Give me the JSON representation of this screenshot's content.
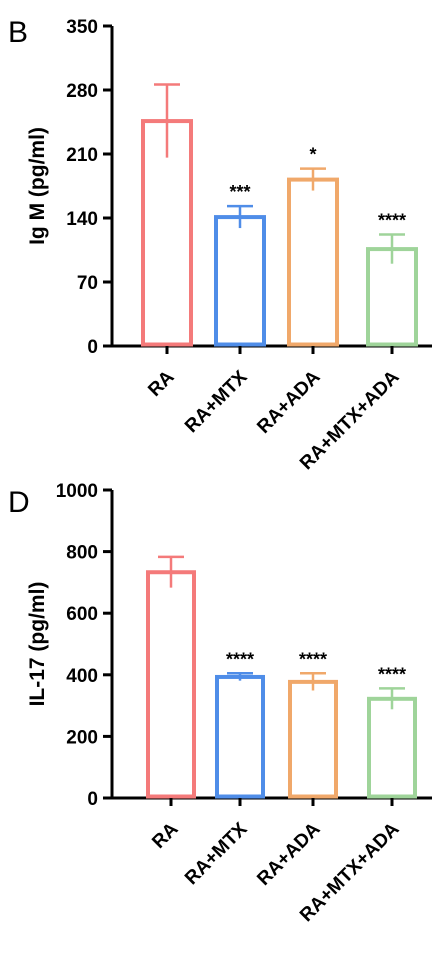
{
  "colors": {
    "RA": "#f47a7a",
    "RA+MTX": "#4f8de8",
    "RA+ADA": "#f0a86a",
    "RA+MTX+ADA": "#9fd49a"
  },
  "chart_data": [
    {
      "panel_label": "B",
      "type": "bar",
      "title": "",
      "ylabel": "Ig M (pg/ml)",
      "xlabel": "",
      "ylim": [
        0,
        350
      ],
      "yticks": [
        0,
        70,
        140,
        210,
        280,
        350
      ],
      "categories": [
        "RA",
        "RA+MTX",
        "RA+ADA",
        "RA+MTX+ADA"
      ],
      "values": [
        246,
        141,
        182,
        106
      ],
      "errors": [
        40,
        12,
        12,
        16
      ],
      "significance": [
        "",
        "***",
        "*",
        "****"
      ],
      "grid": false,
      "legend": "none"
    },
    {
      "panel_label": "D",
      "type": "bar",
      "title": "",
      "ylabel": "IL-17 (pg/ml)",
      "xlabel": "",
      "ylim": [
        0,
        1000
      ],
      "yticks": [
        0,
        200,
        400,
        600,
        800,
        1000
      ],
      "categories": [
        "RA",
        "RA+MTX",
        "RA+ADA",
        "RA+MTX+ADA"
      ],
      "values": [
        733,
        393,
        377,
        322
      ],
      "errors": [
        50,
        12,
        28,
        34
      ],
      "significance": [
        "",
        "****",
        "****",
        "****"
      ],
      "grid": false,
      "legend": "none"
    }
  ]
}
